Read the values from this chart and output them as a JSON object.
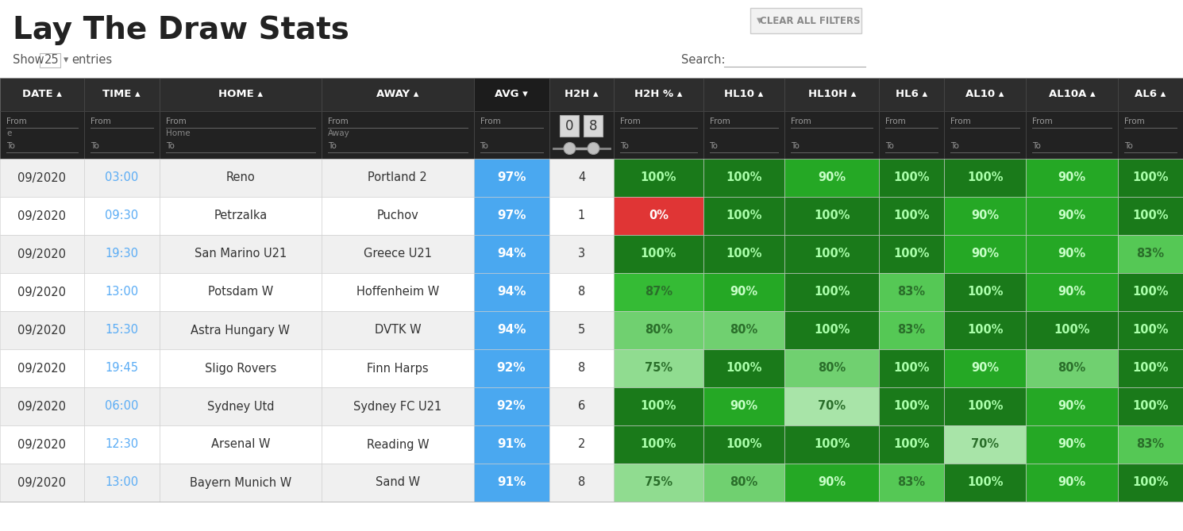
{
  "title": "Lay The Draw Stats",
  "button_text": "CLEAR ALL FILTERS",
  "show_text": "Show",
  "show_num": "25",
  "entries_text": "entries",
  "search_text": "Search:",
  "columns": [
    "DATE",
    "TIME",
    "HOME",
    "AWAY",
    "AVG",
    "H2H",
    "H2H %",
    "HL10",
    "HL10H",
    "HL6",
    "AL10",
    "AL10A",
    "AL6"
  ],
  "col_widths": [
    0.8,
    0.72,
    1.55,
    1.45,
    0.72,
    0.62,
    0.85,
    0.78,
    0.9,
    0.62,
    0.78,
    0.88,
    0.62
  ],
  "rows": [
    [
      "09/2020",
      "03:00",
      "Reno",
      "Portland 2",
      "97%",
      "4",
      "100%",
      "100%",
      "90%",
      "100%",
      "100%",
      "90%",
      "100%"
    ],
    [
      "09/2020",
      "09:30",
      "Petrzalka",
      "Puchov",
      "97%",
      "1",
      "0%",
      "100%",
      "100%",
      "100%",
      "90%",
      "90%",
      "100%"
    ],
    [
      "09/2020",
      "19:30",
      "San Marino U21",
      "Greece U21",
      "94%",
      "3",
      "100%",
      "100%",
      "100%",
      "100%",
      "90%",
      "90%",
      "83%"
    ],
    [
      "09/2020",
      "13:00",
      "Potsdam W",
      "Hoffenheim W",
      "94%",
      "8",
      "87%",
      "90%",
      "100%",
      "83%",
      "100%",
      "90%",
      "100%"
    ],
    [
      "09/2020",
      "15:30",
      "Astra Hungary W",
      "DVTK W",
      "94%",
      "5",
      "80%",
      "80%",
      "100%",
      "83%",
      "100%",
      "100%",
      "100%"
    ],
    [
      "09/2020",
      "19:45",
      "Sligo Rovers",
      "Finn Harps",
      "92%",
      "8",
      "75%",
      "100%",
      "80%",
      "100%",
      "90%",
      "80%",
      "100%"
    ],
    [
      "09/2020",
      "06:00",
      "Sydney Utd",
      "Sydney FC U21",
      "92%",
      "6",
      "100%",
      "90%",
      "70%",
      "100%",
      "100%",
      "90%",
      "100%"
    ],
    [
      "09/2020",
      "12:30",
      "Arsenal W",
      "Reading W",
      "91%",
      "2",
      "100%",
      "100%",
      "100%",
      "100%",
      "70%",
      "90%",
      "83%"
    ],
    [
      "09/2020",
      "13:00",
      "Bayern Munich W",
      "Sand W",
      "91%",
      "8",
      "75%",
      "80%",
      "90%",
      "83%",
      "100%",
      "90%",
      "100%"
    ]
  ],
  "header_bg": "#2d2d2d",
  "header_text_color": "#ffffff",
  "subheader_bg": "#222222",
  "row_bg_odd": "#f0f0f0",
  "row_bg_even": "#ffffff",
  "avg_color": "#4aa8f0",
  "time_color": "#5aacf5",
  "green_100": "#1a7a1a",
  "green_90": "#25a825",
  "green_87": "#35bb35",
  "green_83": "#55c855",
  "green_80": "#70d070",
  "green_75": "#90dc90",
  "green_70": "#a8e4a8",
  "red_color": "#e03535",
  "filter_text_color": "#888888",
  "border_color": "#555555",
  "row_border_color": "#cccccc",
  "title_color": "#222222",
  "figsize": [
    14.9,
    6.69
  ],
  "dpi": 100
}
